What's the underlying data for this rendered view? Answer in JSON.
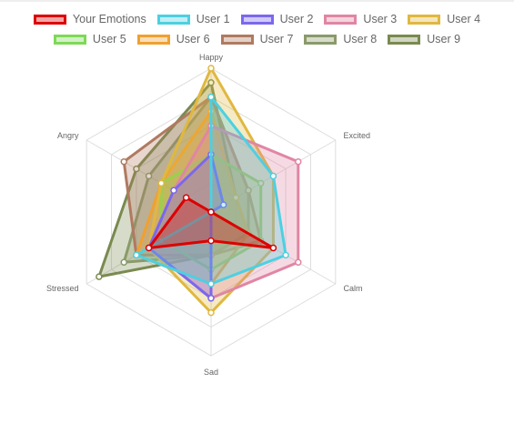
{
  "chart_data": {
    "type": "radar",
    "axes": [
      "Happy",
      "Excited",
      "Calm",
      "Sad",
      "Stressed",
      "Angry"
    ],
    "range": [
      0,
      10
    ],
    "grid": true,
    "legend_position": "top",
    "series": [
      {
        "name": "Your Emotions",
        "values": [
          0,
          0,
          5,
          2,
          5,
          2
        ],
        "color": "#dd0000"
      },
      {
        "name": "User 1",
        "values": [
          8,
          5,
          6,
          5,
          6,
          0
        ],
        "color": "#4dd0e1"
      },
      {
        "name": "User 2",
        "values": [
          4,
          1,
          0,
          6,
          5,
          3
        ],
        "color": "#7b68ee"
      },
      {
        "name": "User 3",
        "values": [
          6,
          7,
          7,
          6,
          5,
          3
        ],
        "color": "#e086a3"
      },
      {
        "name": "User 4",
        "values": [
          10,
          5,
          5,
          7,
          5,
          4
        ],
        "color": "#e0b840"
      },
      {
        "name": "User 5",
        "values": [
          4,
          4,
          4,
          4,
          4,
          4
        ],
        "color": "#7ed957"
      },
      {
        "name": "User 6",
        "values": [
          7,
          2,
          3,
          5,
          6,
          4
        ],
        "color": "#f0a030"
      },
      {
        "name": "User 7",
        "values": [
          8,
          3,
          4,
          3,
          6,
          7
        ],
        "color": "#b07a60"
      },
      {
        "name": "User 8",
        "values": [
          8,
          3,
          3,
          3,
          7,
          5
        ],
        "color": "#8a9a6a"
      },
      {
        "name": "User 9",
        "values": [
          9,
          2,
          3,
          3,
          9,
          6
        ],
        "color": "#7a8a50"
      }
    ]
  }
}
